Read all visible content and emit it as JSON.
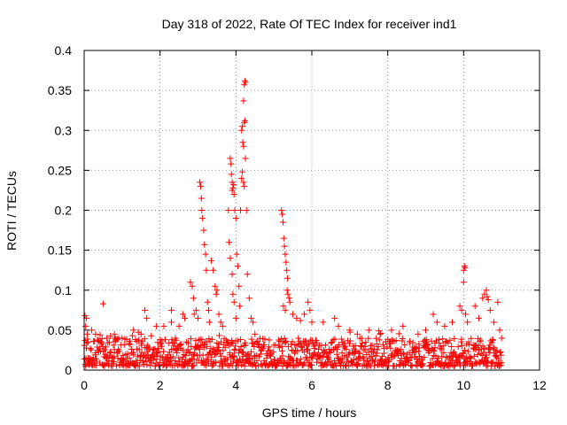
{
  "chart_data": {
    "type": "scatter",
    "title": "Day 318 of 2022, Rate Of TEC Index for receiver ind1",
    "xlabel": "GPS time / hours",
    "ylabel": "ROTI / TECUs",
    "xlim": [
      0,
      12
    ],
    "ylim": [
      0,
      0.4
    ],
    "xticks": [
      0,
      2,
      4,
      6,
      8,
      10,
      12
    ],
    "yticks": [
      0,
      0.05,
      0.1,
      0.15,
      0.2,
      0.25,
      0.3,
      0.35,
      0.4
    ],
    "xtick_labels": [
      "0",
      "2",
      "4",
      "6",
      "8",
      "10",
      "12"
    ],
    "ytick_labels": [
      "0",
      "0.05",
      "0.1",
      "0.15",
      "0.2",
      "0.25",
      "0.3",
      "0.35",
      "0.4"
    ],
    "grid": true,
    "marker": "+",
    "color": "#ff0000",
    "x_extent": [
      0,
      11
    ],
    "baseline_band": [
      0.005,
      0.04
    ],
    "series": [
      {
        "name": "ROTI",
        "points": [
          [
            0.02,
            0.068
          ],
          [
            0.04,
            0.055
          ],
          [
            0.06,
            0.065
          ],
          [
            0.08,
            0.045
          ],
          [
            0.1,
            0.035
          ],
          [
            0.2,
            0.05
          ],
          [
            0.3,
            0.045
          ],
          [
            0.5,
            0.083
          ],
          [
            0.6,
            0.04
          ],
          [
            0.8,
            0.045
          ],
          [
            1.0,
            0.04
          ],
          [
            1.3,
            0.05
          ],
          [
            1.5,
            0.045
          ],
          [
            1.6,
            0.075
          ],
          [
            1.65,
            0.065
          ],
          [
            1.9,
            0.055
          ],
          [
            2.1,
            0.055
          ],
          [
            2.3,
            0.06
          ],
          [
            2.3,
            0.075
          ],
          [
            2.5,
            0.055
          ],
          [
            2.6,
            0.07
          ],
          [
            2.65,
            0.065
          ],
          [
            2.8,
            0.11
          ],
          [
            2.85,
            0.105
          ],
          [
            2.88,
            0.09
          ],
          [
            2.9,
            0.07
          ],
          [
            2.95,
            0.075
          ],
          [
            3.0,
            0.065
          ],
          [
            3.05,
            0.235
          ],
          [
            3.07,
            0.23
          ],
          [
            3.09,
            0.215
          ],
          [
            3.1,
            0.2
          ],
          [
            3.12,
            0.19
          ],
          [
            3.15,
            0.175
          ],
          [
            3.17,
            0.157
          ],
          [
            3.2,
            0.145
          ],
          [
            3.22,
            0.125
          ],
          [
            3.25,
            0.085
          ],
          [
            3.28,
            0.075
          ],
          [
            3.3,
            0.06
          ],
          [
            3.35,
            0.137
          ],
          [
            3.4,
            0.125
          ],
          [
            3.45,
            0.105
          ],
          [
            3.48,
            0.095
          ],
          [
            3.5,
            0.1
          ],
          [
            3.55,
            0.07
          ],
          [
            3.6,
            0.06
          ],
          [
            3.65,
            0.055
          ],
          [
            3.8,
            0.2
          ],
          [
            3.82,
            0.16
          ],
          [
            3.85,
            0.14
          ],
          [
            3.85,
            0.265
          ],
          [
            3.87,
            0.258
          ],
          [
            3.88,
            0.245
          ],
          [
            3.9,
            0.235
          ],
          [
            3.9,
            0.225
          ],
          [
            3.92,
            0.228
          ],
          [
            3.94,
            0.232
          ],
          [
            3.95,
            0.22
          ],
          [
            3.97,
            0.2
          ],
          [
            4.0,
            0.19
          ],
          [
            3.9,
            0.12
          ],
          [
            3.92,
            0.095
          ],
          [
            3.95,
            0.085
          ],
          [
            4.0,
            0.065
          ],
          [
            4.02,
            0.145
          ],
          [
            4.05,
            0.13
          ],
          [
            4.08,
            0.105
          ],
          [
            4.1,
            0.08
          ],
          [
            4.12,
            0.2
          ],
          [
            4.15,
            0.24
          ],
          [
            4.17,
            0.248
          ],
          [
            4.2,
            0.235
          ],
          [
            4.22,
            0.23
          ],
          [
            4.15,
            0.3
          ],
          [
            4.17,
            0.305
          ],
          [
            4.18,
            0.285
          ],
          [
            4.2,
            0.28
          ],
          [
            4.22,
            0.31
          ],
          [
            4.24,
            0.312
          ],
          [
            4.2,
            0.337
          ],
          [
            4.22,
            0.357
          ],
          [
            4.24,
            0.362
          ],
          [
            4.25,
            0.36
          ],
          [
            4.25,
            0.265
          ],
          [
            4.28,
            0.2
          ],
          [
            4.3,
            0.12
          ],
          [
            4.35,
            0.09
          ],
          [
            4.4,
            0.065
          ],
          [
            4.45,
            0.06
          ],
          [
            4.5,
            0.045
          ],
          [
            5.2,
            0.2
          ],
          [
            5.22,
            0.195
          ],
          [
            5.24,
            0.185
          ],
          [
            5.26,
            0.165
          ],
          [
            5.28,
            0.155
          ],
          [
            5.3,
            0.145
          ],
          [
            5.32,
            0.135
          ],
          [
            5.34,
            0.125
          ],
          [
            5.36,
            0.115
          ],
          [
            5.35,
            0.1
          ],
          [
            5.37,
            0.095
          ],
          [
            5.4,
            0.09
          ],
          [
            5.42,
            0.085
          ],
          [
            5.25,
            0.08
          ],
          [
            5.3,
            0.075
          ],
          [
            5.5,
            0.07
          ],
          [
            5.6,
            0.065
          ],
          [
            5.7,
            0.062
          ],
          [
            5.8,
            0.07
          ],
          [
            5.9,
            0.085
          ],
          [
            5.95,
            0.075
          ],
          [
            6.0,
            0.06
          ],
          [
            6.3,
            0.06
          ],
          [
            6.6,
            0.065
          ],
          [
            6.7,
            0.055
          ],
          [
            7.0,
            0.05
          ],
          [
            7.2,
            0.045
          ],
          [
            7.5,
            0.05
          ],
          [
            7.8,
            0.045
          ],
          [
            8.1,
            0.05
          ],
          [
            8.4,
            0.055
          ],
          [
            8.8,
            0.045
          ],
          [
            9.0,
            0.05
          ],
          [
            9.2,
            0.07
          ],
          [
            9.3,
            0.06
          ],
          [
            9.5,
            0.055
          ],
          [
            9.7,
            0.06
          ],
          [
            9.9,
            0.08
          ],
          [
            9.95,
            0.075
          ],
          [
            10.0,
            0.125
          ],
          [
            10.02,
            0.13
          ],
          [
            10.04,
            0.128
          ],
          [
            10.0,
            0.11
          ],
          [
            10.05,
            0.07
          ],
          [
            10.1,
            0.06
          ],
          [
            10.3,
            0.08
          ],
          [
            10.4,
            0.065
          ],
          [
            10.5,
            0.09
          ],
          [
            10.55,
            0.095
          ],
          [
            10.6,
            0.1
          ],
          [
            10.62,
            0.092
          ],
          [
            10.65,
            0.088
          ],
          [
            10.7,
            0.075
          ],
          [
            10.8,
            0.06
          ],
          [
            10.9,
            0.085
          ],
          [
            10.95,
            0.05
          ],
          [
            11.0,
            0.04
          ]
        ]
      }
    ]
  }
}
